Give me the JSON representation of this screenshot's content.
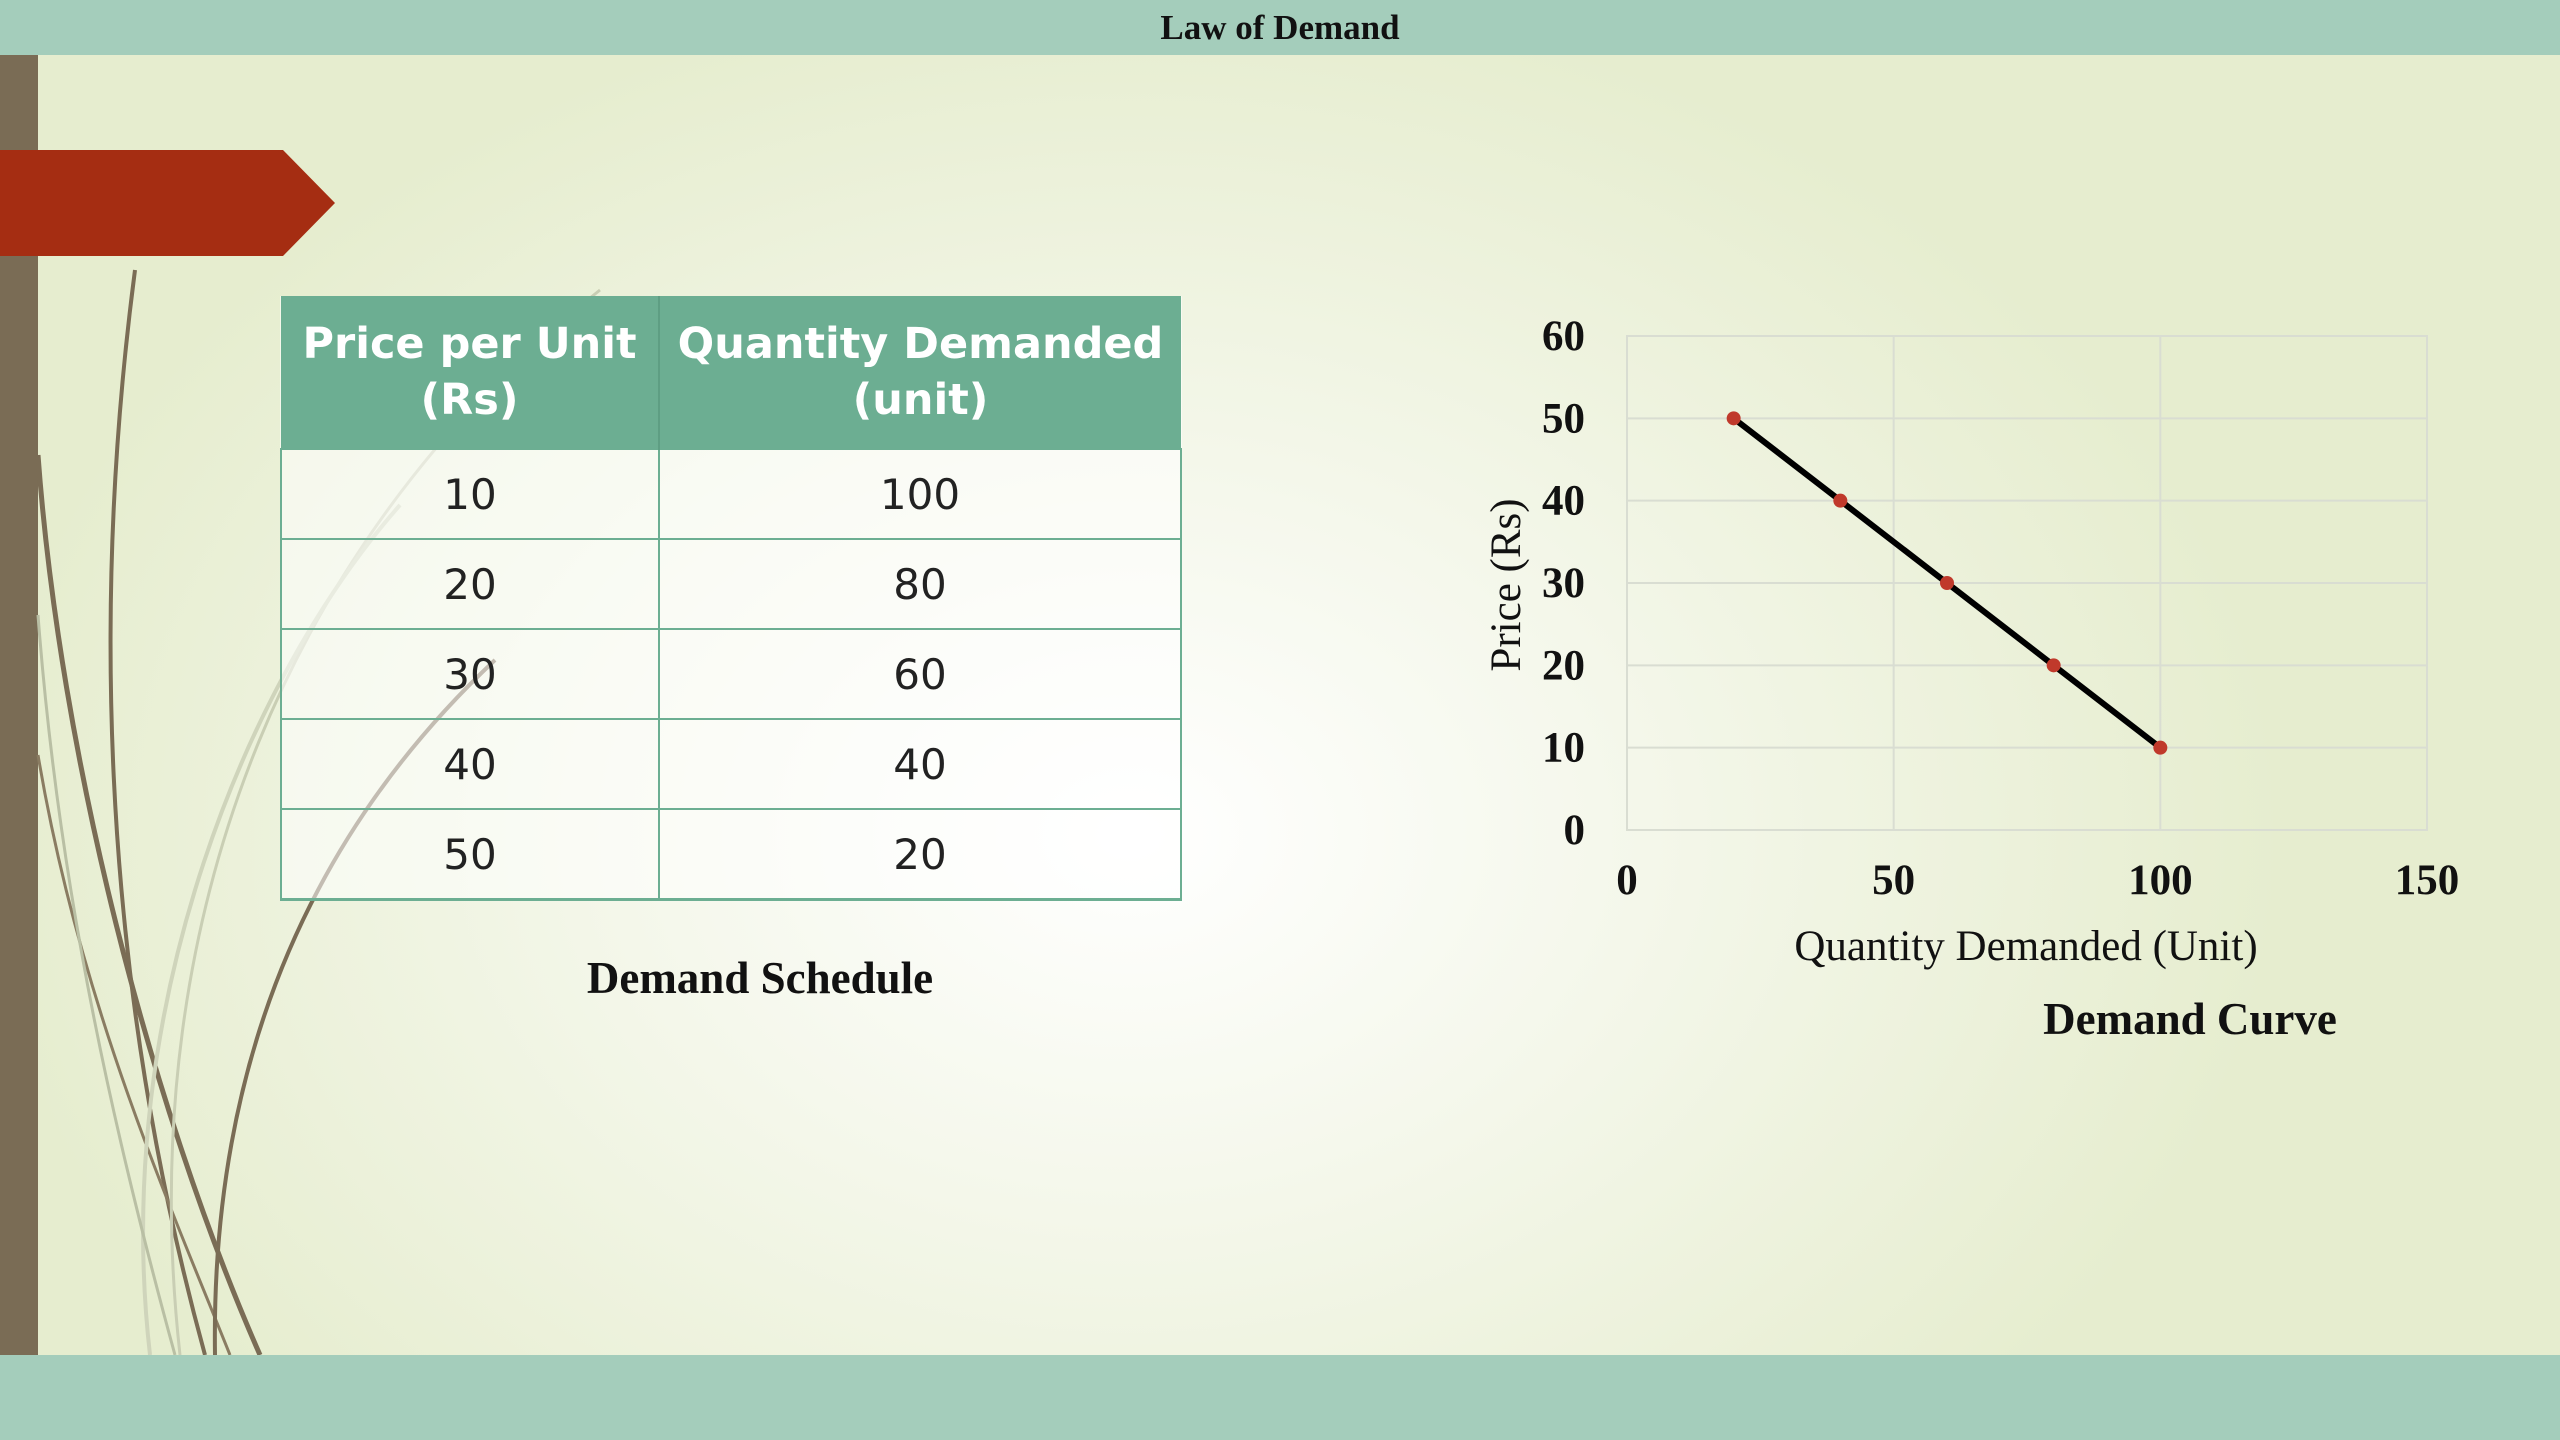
{
  "title": "Law of Demand",
  "table": {
    "headers": [
      "Price per Unit (Rs)",
      "Quantity Demanded (unit)"
    ],
    "rows": [
      [
        "10",
        "100"
      ],
      [
        "20",
        "80"
      ],
      [
        "30",
        "60"
      ],
      [
        "40",
        "40"
      ],
      [
        "50",
        "20"
      ]
    ],
    "caption": "Demand Schedule"
  },
  "colors": {
    "bar": "#a4cdbb",
    "header_fill": "#6cae92",
    "accent_arrow": "#a52d12",
    "strip": "#7a6c55",
    "marker": "#c0392b",
    "line": "#000000"
  },
  "icons": {
    "arrow": "red-pentagon-arrow"
  },
  "chart_data": {
    "type": "line",
    "title": "",
    "xlabel": "Quantity Demanded (Unit)",
    "ylabel": "Price (Rs)",
    "xlim": [
      0,
      150
    ],
    "ylim": [
      0,
      60
    ],
    "xticks": [
      0,
      50,
      100,
      150
    ],
    "yticks": [
      0,
      10,
      20,
      30,
      40,
      50,
      60
    ],
    "grid": true,
    "series": [
      {
        "x": [
          20,
          40,
          60,
          80,
          100
        ],
        "y": [
          50,
          40,
          30,
          20,
          10
        ]
      }
    ],
    "caption": "Demand Curve"
  }
}
